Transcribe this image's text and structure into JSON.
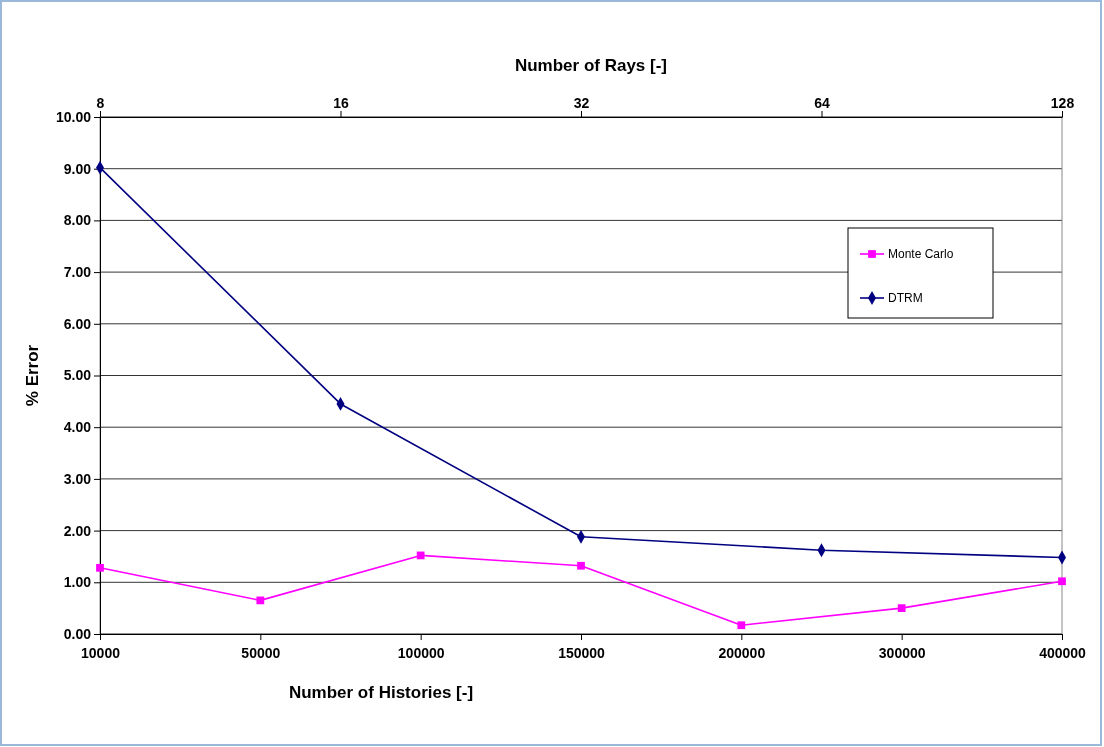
{
  "chart_data": {
    "type": "line",
    "xlabel": "Number of Histories [-]",
    "ylabel": "% Error",
    "x2label": "Number of Rays [-]",
    "categories": [
      "10000",
      "50000",
      "100000",
      "150000",
      "200000",
      "300000",
      "400000"
    ],
    "x2lim": [
      8,
      128
    ],
    "x2ticks": [
      8,
      16,
      32,
      64,
      128
    ],
    "log": "x2",
    "ylim": [
      0,
      10
    ],
    "yticks": [
      {
        "value": 0,
        "label": "0.00"
      },
      {
        "value": 1,
        "label": "1.00"
      },
      {
        "value": 2,
        "label": "2.00"
      },
      {
        "value": 3,
        "label": "3.00"
      },
      {
        "value": 4,
        "label": "4.00"
      },
      {
        "value": 5,
        "label": "5.00"
      },
      {
        "value": 6,
        "label": "6.00"
      },
      {
        "value": 7,
        "label": "7.00"
      },
      {
        "value": 8,
        "label": "8.00"
      },
      {
        "value": 9,
        "label": "9.00"
      },
      {
        "value": 10,
        "label": "10.00"
      }
    ],
    "grid": "y",
    "legend": "right",
    "series": [
      {
        "name": "Monte Carlo",
        "color": "#ff00ff",
        "marker": "square",
        "values": [
          1.28,
          0.65,
          1.52,
          1.32,
          0.17,
          0.5,
          1.02
        ]
      },
      {
        "name": "DTRM",
        "color": "#000080",
        "marker": "diamond",
        "axis": "x2",
        "x": [
          8,
          16,
          32,
          64,
          128
        ],
        "values": [
          9.02,
          4.45,
          1.88,
          1.62,
          1.48
        ]
      }
    ]
  }
}
